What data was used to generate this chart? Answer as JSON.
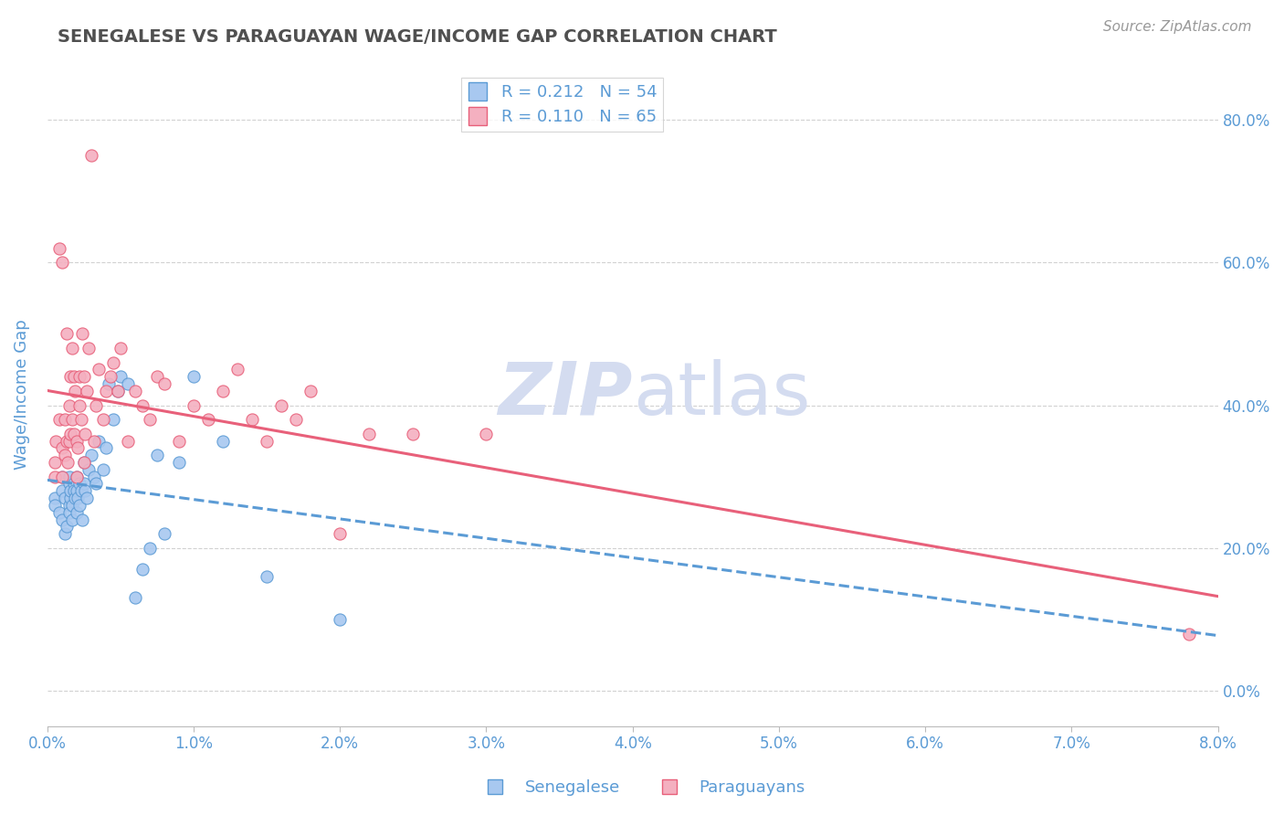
{
  "title": "SENEGALESE VS PARAGUAYAN WAGE/INCOME GAP CORRELATION CHART",
  "source_text": "Source: ZipAtlas.com",
  "ylabel": "Wage/Income Gap",
  "xlim": [
    0.0,
    0.08
  ],
  "ylim": [
    -0.05,
    0.88
  ],
  "xticks": [
    0.0,
    0.01,
    0.02,
    0.03,
    0.04,
    0.05,
    0.06,
    0.07,
    0.08
  ],
  "yticks": [
    0.0,
    0.2,
    0.4,
    0.6,
    0.8
  ],
  "r_senegalese": 0.212,
  "n_senegalese": 54,
  "r_paraguayan": 0.11,
  "n_paraguayan": 65,
  "color_senegalese": "#A8C8F0",
  "color_paraguayan": "#F4B0C0",
  "line_color_senegalese": "#5B9BD5",
  "line_color_paraguayan": "#E8607A",
  "background_color": "#FFFFFF",
  "grid_color": "#CCCCCC",
  "watermark_color": "#D4DCF0",
  "title_color": "#505050",
  "tick_label_color": "#5B9BD5",
  "senegalese_x": [
    0.0005,
    0.0005,
    0.0008,
    0.001,
    0.001,
    0.001,
    0.0012,
    0.0012,
    0.0013,
    0.0015,
    0.0015,
    0.0015,
    0.0015,
    0.0016,
    0.0016,
    0.0017,
    0.0017,
    0.0018,
    0.0018,
    0.0019,
    0.002,
    0.002,
    0.002,
    0.0021,
    0.0022,
    0.0022,
    0.0023,
    0.0024,
    0.0025,
    0.0025,
    0.0026,
    0.0027,
    0.0028,
    0.003,
    0.0032,
    0.0033,
    0.0035,
    0.0038,
    0.004,
    0.0042,
    0.0045,
    0.0048,
    0.005,
    0.0055,
    0.006,
    0.0065,
    0.007,
    0.0075,
    0.008,
    0.009,
    0.01,
    0.012,
    0.015,
    0.02
  ],
  "senegalese_y": [
    0.27,
    0.26,
    0.25,
    0.28,
    0.24,
    0.3,
    0.22,
    0.27,
    0.23,
    0.29,
    0.26,
    0.3,
    0.25,
    0.27,
    0.28,
    0.26,
    0.24,
    0.29,
    0.28,
    0.27,
    0.25,
    0.28,
    0.3,
    0.27,
    0.26,
    0.29,
    0.28,
    0.24,
    0.32,
    0.29,
    0.28,
    0.27,
    0.31,
    0.33,
    0.3,
    0.29,
    0.35,
    0.31,
    0.34,
    0.43,
    0.38,
    0.42,
    0.44,
    0.43,
    0.13,
    0.17,
    0.2,
    0.33,
    0.22,
    0.32,
    0.44,
    0.35,
    0.16,
    0.1
  ],
  "paraguayan_x": [
    0.0005,
    0.0005,
    0.0006,
    0.0008,
    0.0008,
    0.001,
    0.001,
    0.001,
    0.0012,
    0.0012,
    0.0013,
    0.0013,
    0.0014,
    0.0015,
    0.0015,
    0.0016,
    0.0016,
    0.0017,
    0.0017,
    0.0018,
    0.0018,
    0.0019,
    0.002,
    0.002,
    0.0021,
    0.0022,
    0.0022,
    0.0023,
    0.0024,
    0.0025,
    0.0025,
    0.0026,
    0.0027,
    0.0028,
    0.003,
    0.0032,
    0.0033,
    0.0035,
    0.0038,
    0.004,
    0.0043,
    0.0045,
    0.0048,
    0.005,
    0.0055,
    0.006,
    0.0065,
    0.007,
    0.0075,
    0.008,
    0.009,
    0.01,
    0.011,
    0.012,
    0.013,
    0.014,
    0.015,
    0.016,
    0.017,
    0.018,
    0.02,
    0.022,
    0.025,
    0.03,
    0.078
  ],
  "paraguayan_y": [
    0.3,
    0.32,
    0.35,
    0.38,
    0.62,
    0.3,
    0.34,
    0.6,
    0.33,
    0.38,
    0.35,
    0.5,
    0.32,
    0.35,
    0.4,
    0.36,
    0.44,
    0.38,
    0.48,
    0.36,
    0.44,
    0.42,
    0.3,
    0.35,
    0.34,
    0.4,
    0.44,
    0.38,
    0.5,
    0.32,
    0.44,
    0.36,
    0.42,
    0.48,
    0.75,
    0.35,
    0.4,
    0.45,
    0.38,
    0.42,
    0.44,
    0.46,
    0.42,
    0.48,
    0.35,
    0.42,
    0.4,
    0.38,
    0.44,
    0.43,
    0.35,
    0.4,
    0.38,
    0.42,
    0.45,
    0.38,
    0.35,
    0.4,
    0.38,
    0.42,
    0.22,
    0.36,
    0.36,
    0.36,
    0.08
  ]
}
